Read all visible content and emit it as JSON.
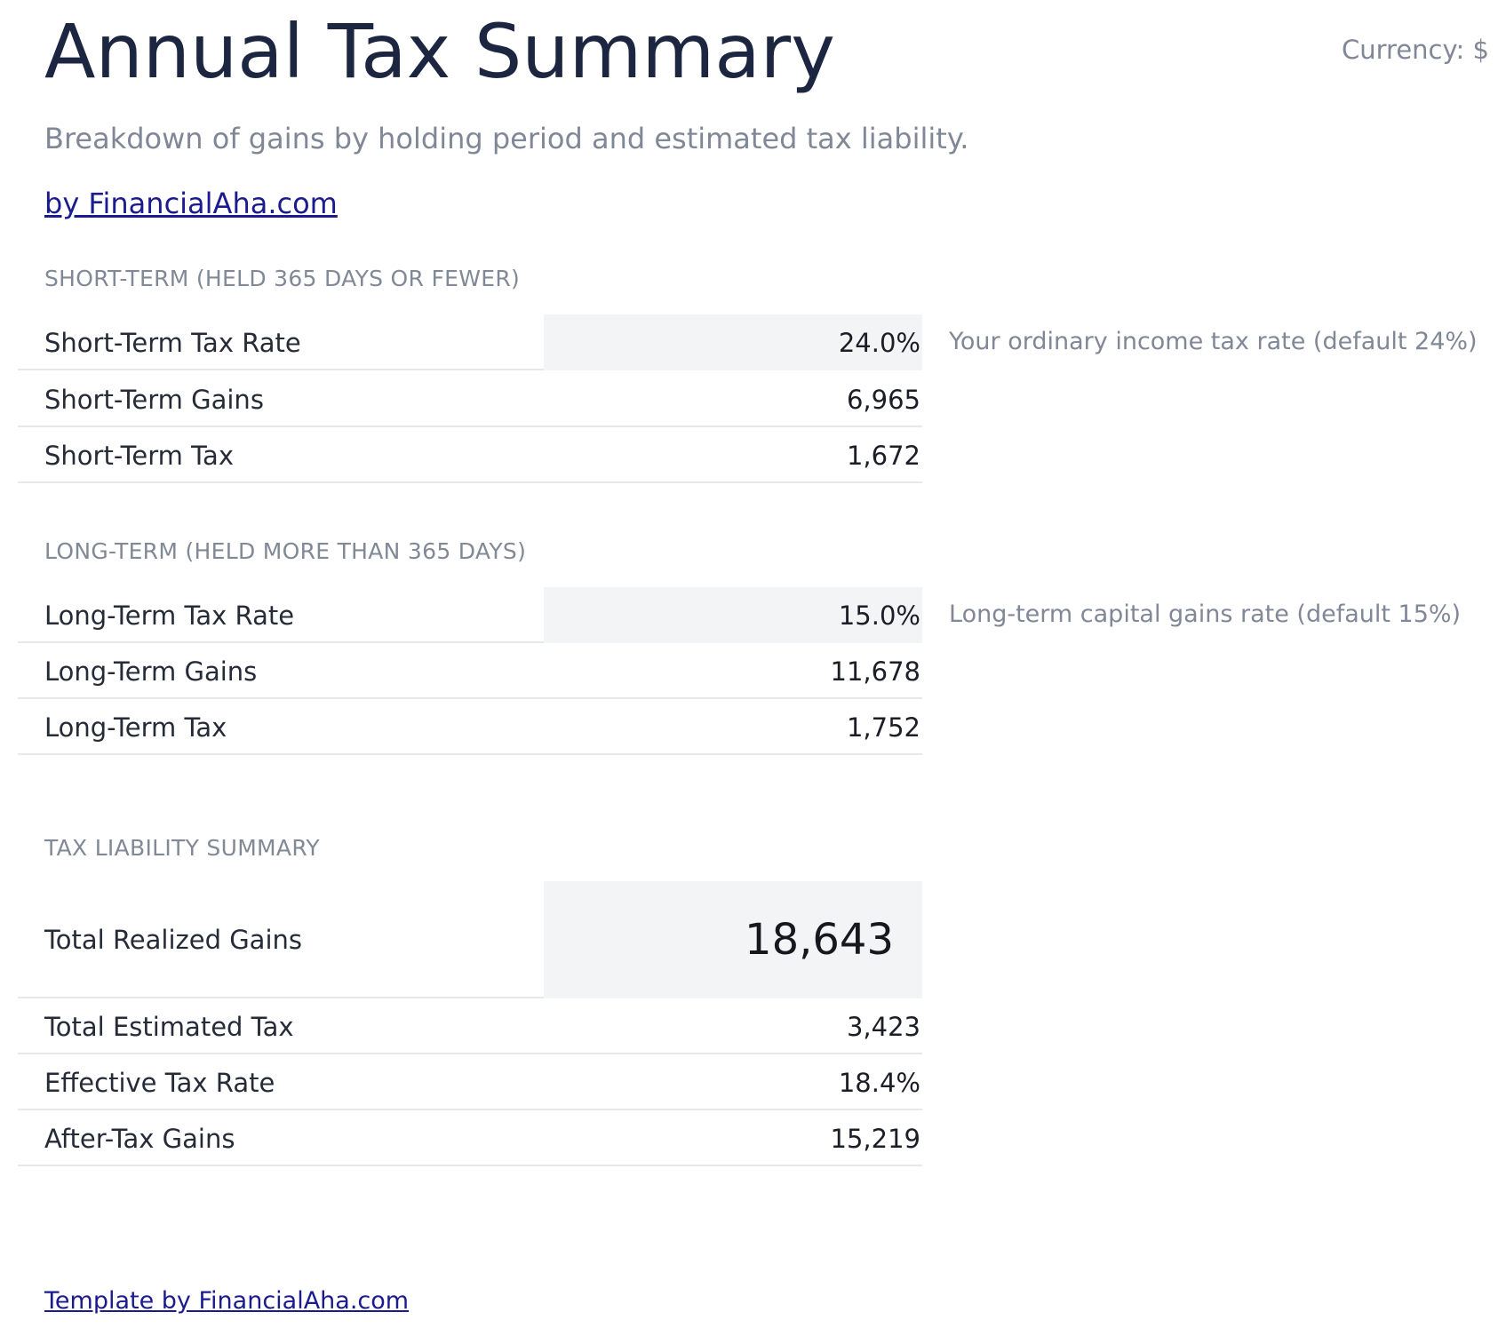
{
  "header": {
    "title": "Annual Tax Summary",
    "currency": "Currency: $",
    "subtitle": "Breakdown of gains by holding period and estimated tax liability.",
    "brand_link": "by FinancialAha.com"
  },
  "short_term": {
    "heading": "SHORT-TERM (HELD 365 DAYS OR FEWER)",
    "rate_label": "Short-Term Tax Rate",
    "rate_value": "24.0%",
    "rate_note": "Your ordinary income tax rate (default 24%)",
    "gains_label": "Short-Term Gains",
    "gains_value": "6,965",
    "tax_label": "Short-Term Tax",
    "tax_value": "1,672"
  },
  "long_term": {
    "heading": "LONG-TERM (HELD MORE THAN 365 DAYS)",
    "rate_label": "Long-Term Tax Rate",
    "rate_value": "15.0%",
    "rate_note": "Long-term capital gains rate (default 15%)",
    "gains_label": "Long-Term Gains",
    "gains_value": "11,678",
    "tax_label": "Long-Term Tax",
    "tax_value": "1,752"
  },
  "summary": {
    "heading": "TAX LIABILITY SUMMARY",
    "total_gains_label": "Total Realized Gains",
    "total_gains_value": "18,643",
    "total_tax_label": "Total Estimated Tax",
    "total_tax_value": "3,423",
    "effective_rate_label": "Effective Tax Rate",
    "effective_rate_value": "18.4%",
    "after_tax_label": "After-Tax Gains",
    "after_tax_value": "15,219"
  },
  "footer": {
    "link": "Template by FinancialAha.com"
  },
  "colors": {
    "title": "#1c2640",
    "muted_text": "#808796",
    "link": "#1b1b8f",
    "input_cell_bg": "#f3f4f6",
    "row_divider": "#e6e8ec"
  }
}
